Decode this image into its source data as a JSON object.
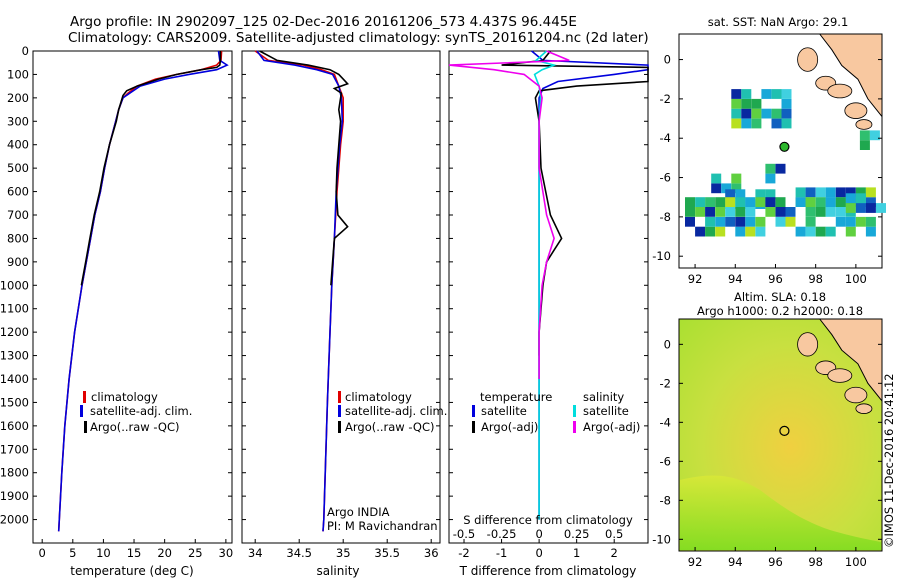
{
  "header": {
    "line1": "Argo profile: IN 2902097_125 02-Dec-2016 20161206_573 4.437S 96.445E",
    "line2": "Climatology: CARS2009. Satellite-adjusted climatology: synTS_20161204.nc (2d later)"
  },
  "colors": {
    "climatology": "#e00000",
    "satellite": "#0000dd",
    "argo": "#000000",
    "cyan": "#00dddd",
    "magenta": "#ee00ee",
    "land": "#f8c8a0"
  },
  "chart_data": [
    {
      "type": "line",
      "id": "temperature",
      "xlabel": "temperature (deg C)",
      "ylabel": "",
      "xlim": [
        -1.5,
        31
      ],
      "ylim": [
        2100,
        0
      ],
      "xticks": [
        "0",
        "5",
        "10",
        "15",
        "20",
        "25",
        "30"
      ],
      "yticks": [
        "0",
        "100",
        "200",
        "300",
        "400",
        "500",
        "600",
        "700",
        "800",
        "900",
        "1000",
        "1100",
        "1200",
        "1300",
        "1400",
        "1500",
        "1600",
        "1700",
        "1800",
        "1900",
        "2000"
      ],
      "legend": [
        "climatology",
        "satellite-adj. clim.",
        "Argo(..raw -QC)"
      ],
      "series": [
        {
          "name": "climatology",
          "depth": [
            0,
            40,
            60,
            80,
            100,
            120,
            150,
            180,
            200,
            250,
            300,
            400,
            500,
            600,
            700,
            800,
            900,
            1000,
            1200,
            1400,
            1600,
            1800,
            2000,
            2050
          ],
          "values": [
            29.3,
            29.2,
            28.5,
            26,
            22,
            18.5,
            15.5,
            14,
            13.2,
            12.5,
            12.0,
            11.0,
            10.2,
            9.5,
            8.6,
            7.9,
            7.2,
            6.5,
            5.3,
            4.4,
            3.7,
            3.2,
            2.8,
            2.7
          ]
        },
        {
          "name": "satellite-adj. clim.",
          "depth": [
            0,
            40,
            60,
            80,
            100,
            120,
            150,
            180,
            200,
            250,
            300,
            400,
            500,
            600,
            700,
            800,
            900,
            1000,
            1200,
            1400,
            1600,
            1800,
            2000,
            2050
          ],
          "values": [
            28.8,
            29.0,
            30.2,
            28.5,
            24,
            20,
            16,
            14.3,
            13.2,
            12.5,
            12.0,
            11.0,
            10.2,
            9.5,
            8.6,
            7.9,
            7.2,
            6.5,
            5.3,
            4.4,
            3.7,
            3.2,
            2.8,
            2.7
          ]
        },
        {
          "name": "Argo(..raw -QC)",
          "depth": [
            0,
            40,
            60,
            70,
            80,
            100,
            120,
            150,
            170,
            190,
            250,
            300,
            400,
            500,
            600,
            700,
            800,
            900,
            1000
          ],
          "values": [
            29.1,
            29.1,
            29.0,
            28.5,
            26,
            22,
            19,
            15.5,
            13.8,
            13.2,
            12.5,
            12.1,
            11.0,
            10.1,
            9.4,
            8.5,
            7.8,
            7.1,
            6.4
          ]
        }
      ]
    },
    {
      "type": "line",
      "id": "salinity",
      "xlabel": "salinity",
      "xlim": [
        33.85,
        36.1
      ],
      "ylim": [
        2100,
        0
      ],
      "xticks": [
        "34",
        "34.5",
        "35",
        "35.5",
        "36"
      ],
      "legend": [
        "climatology",
        "satellite-adj. clim.",
        "Argo(..raw -QC)"
      ],
      "annotation": [
        "Argo INDIA",
        "PI: M Ravichandran"
      ],
      "series": [
        {
          "name": "climatology",
          "depth": [
            0,
            40,
            60,
            80,
            100,
            150,
            200,
            300,
            400,
            600,
            800,
            1000,
            1200,
            1500,
            2000,
            2050
          ],
          "values": [
            34.0,
            34.15,
            34.55,
            34.75,
            34.9,
            34.95,
            35.0,
            35.0,
            34.97,
            34.93,
            34.9,
            34.87,
            34.85,
            34.82,
            34.78,
            34.77
          ]
        },
        {
          "name": "satellite-adj. clim.",
          "depth": [
            0,
            40,
            60,
            80,
            100,
            150,
            200,
            300,
            400,
            600,
            800,
            1000,
            1200,
            1500,
            2000,
            2050
          ],
          "values": [
            34.02,
            34.1,
            34.45,
            34.7,
            34.88,
            34.95,
            34.98,
            34.99,
            34.96,
            34.92,
            34.9,
            34.87,
            34.85,
            34.82,
            34.78,
            34.77
          ]
        },
        {
          "name": "Argo(..raw -QC)",
          "depth": [
            0,
            40,
            60,
            80,
            100,
            120,
            140,
            160,
            180,
            200,
            250,
            300,
            400,
            500,
            600,
            700,
            750,
            800,
            900,
            1000
          ],
          "values": [
            34.05,
            34.25,
            34.6,
            34.85,
            34.95,
            35.0,
            35.05,
            34.9,
            34.98,
            34.97,
            34.95,
            34.97,
            34.95,
            34.93,
            34.92,
            34.94,
            35.05,
            34.9,
            34.88,
            34.86
          ]
        }
      ]
    },
    {
      "type": "line",
      "id": "difference",
      "xlabel": "T difference from climatology",
      "xlabel_top": "S difference from climatology",
      "xlim": [
        -2.4,
        2.9
      ],
      "ylim": [
        2100,
        0
      ],
      "xticks_T": [
        "-2",
        "-1",
        "0",
        "1",
        "2"
      ],
      "xticks_S": [
        "-0.5",
        "-0.25",
        "0",
        "0.25",
        "0.5"
      ],
      "legend": {
        "temperature": [
          "satellite",
          "Argo(-adj)"
        ],
        "salinity": [
          "satellite",
          "Argo(-adj)"
        ],
        "headers": [
          "temperature",
          "salinity"
        ]
      },
      "series": [
        {
          "name": "T satellite",
          "depth": [
            0,
            40,
            60,
            80,
            100,
            130,
            160,
            200,
            300,
            500,
            800,
            1200,
            1600,
            2000
          ],
          "values": [
            -0.2,
            0.1,
            2.9,
            2.9,
            2.0,
            0.5,
            0.1,
            0.0,
            0.0,
            0.0,
            0.0,
            0.0,
            0.0,
            0.0
          ]
        },
        {
          "name": "T Argo(-adj)",
          "depth": [
            0,
            40,
            60,
            70,
            80,
            100,
            130,
            150,
            170,
            200,
            300,
            500,
            700,
            800,
            850,
            900,
            1000,
            1200,
            1300
          ],
          "values": [
            0.3,
            0.1,
            -1.0,
            2.9,
            2.9,
            2.9,
            2.9,
            1.0,
            0.0,
            -0.1,
            0.0,
            0.05,
            0.3,
            0.6,
            0.4,
            0.2,
            0.1,
            0.0,
            0.0
          ]
        },
        {
          "name": "S satellite",
          "depth": [
            0,
            40,
            60,
            80,
            100,
            150,
            200,
            300,
            500,
            800,
            1200,
            1600,
            2000
          ],
          "values": [
            0.05,
            -0.02,
            0.1,
            0.02,
            -0.03,
            0.0,
            0.01,
            0.0,
            0.0,
            0.0,
            0.0,
            0.0,
            0.0
          ]
        },
        {
          "name": "S Argo(-adj)",
          "depth": [
            0,
            40,
            60,
            80,
            100,
            150,
            200,
            300,
            500,
            700,
            800,
            900,
            1000,
            1200,
            1400
          ],
          "values": [
            0.05,
            0.2,
            -0.6,
            -0.3,
            -0.1,
            0.0,
            0.02,
            0.0,
            0.0,
            0.05,
            0.1,
            0.05,
            0.02,
            0.0,
            0.0
          ]
        }
      ]
    },
    {
      "type": "heatmap",
      "id": "sst-map",
      "title": "sat. SST: NaN Argo: 29.1",
      "xlim": [
        91.2,
        101.3
      ],
      "ylim": [
        -10.6,
        1.3
      ],
      "xticks": [
        "92",
        "94",
        "96",
        "98",
        "100"
      ],
      "yticks": [
        "0",
        "-2",
        "-4",
        "-6",
        "-8",
        "-10"
      ],
      "float": {
        "lon": 96.445,
        "lat": -4.437
      }
    },
    {
      "type": "heatmap",
      "id": "sla-map",
      "title": "Altim. SLA: 0.18",
      "subtitle": "Argo h1000: 0.2 h2000: 0.18",
      "xlim": [
        91.2,
        101.3
      ],
      "ylim": [
        -10.6,
        1.3
      ],
      "xticks": [
        "92",
        "94",
        "96",
        "98",
        "100"
      ],
      "yticks": [
        "0",
        "-2",
        "-4",
        "-6",
        "-8",
        "-10"
      ],
      "float": {
        "lon": 96.445,
        "lat": -4.437
      }
    }
  ],
  "credit": "©IMOS 11-Dec-2016 20:41:12"
}
